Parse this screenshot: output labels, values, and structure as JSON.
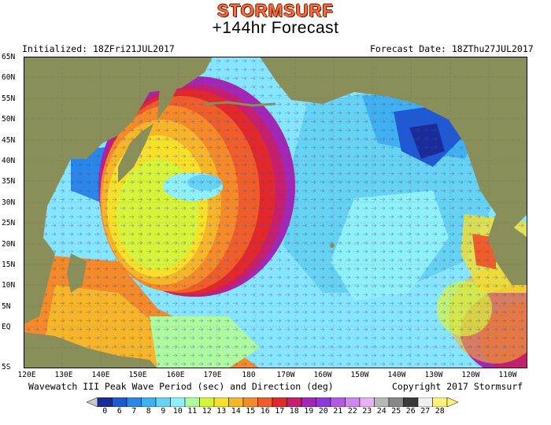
{
  "brand": "STORMSURF",
  "forecast_title": "+144hr Forecast",
  "initialized": "Initialized: 18ZFri21JUL2017",
  "forecast_date": "Forecast Date: 18ZThu27JUL2017",
  "map_title": "Wavewatch III Peak Wave Period (sec) and Direction (deg)",
  "copyright": "Copyright 2017 Stormsurf",
  "lat_labels": [
    "65N",
    "60N",
    "55N",
    "50N",
    "45N",
    "40N",
    "35N",
    "30N",
    "25N",
    "20N",
    "15N",
    "10N",
    "5N",
    "EQ",
    "5S"
  ],
  "lon_labels": [
    "120E",
    "130E",
    "140E",
    "150E",
    "160E",
    "170E",
    "180",
    "170W",
    "160W",
    "150W",
    "140W",
    "130W",
    "120W",
    "110W"
  ],
  "colorbar": {
    "labels": [
      "0",
      "6",
      "7",
      "8",
      "9",
      "10",
      "11",
      "12",
      "13",
      "14",
      "15",
      "16",
      "17",
      "18",
      "19",
      "20",
      "21",
      "22",
      "23",
      "24",
      "25",
      "26",
      "27",
      "28"
    ],
    "colors": [
      "#1a2c9a",
      "#1f5ad6",
      "#2a86e8",
      "#3fb0f0",
      "#66d2f4",
      "#8ef0f8",
      "#aefaa0",
      "#d8f43a",
      "#f6e02a",
      "#f7b62a",
      "#f48a2a",
      "#ef5e2a",
      "#e2282a",
      "#c81e6e",
      "#a326b6",
      "#8c3ad8",
      "#b25ae6",
      "#cf86ee",
      "#e6b2f4",
      "#b8b8b8",
      "#888888",
      "#3a3a3a",
      "#f0f0f0",
      "#fff27a"
    ]
  },
  "colors": {
    "land": "#8a8f5a",
    "ocean_base": "#86e6ff",
    "brand": "#ff6a3d"
  }
}
